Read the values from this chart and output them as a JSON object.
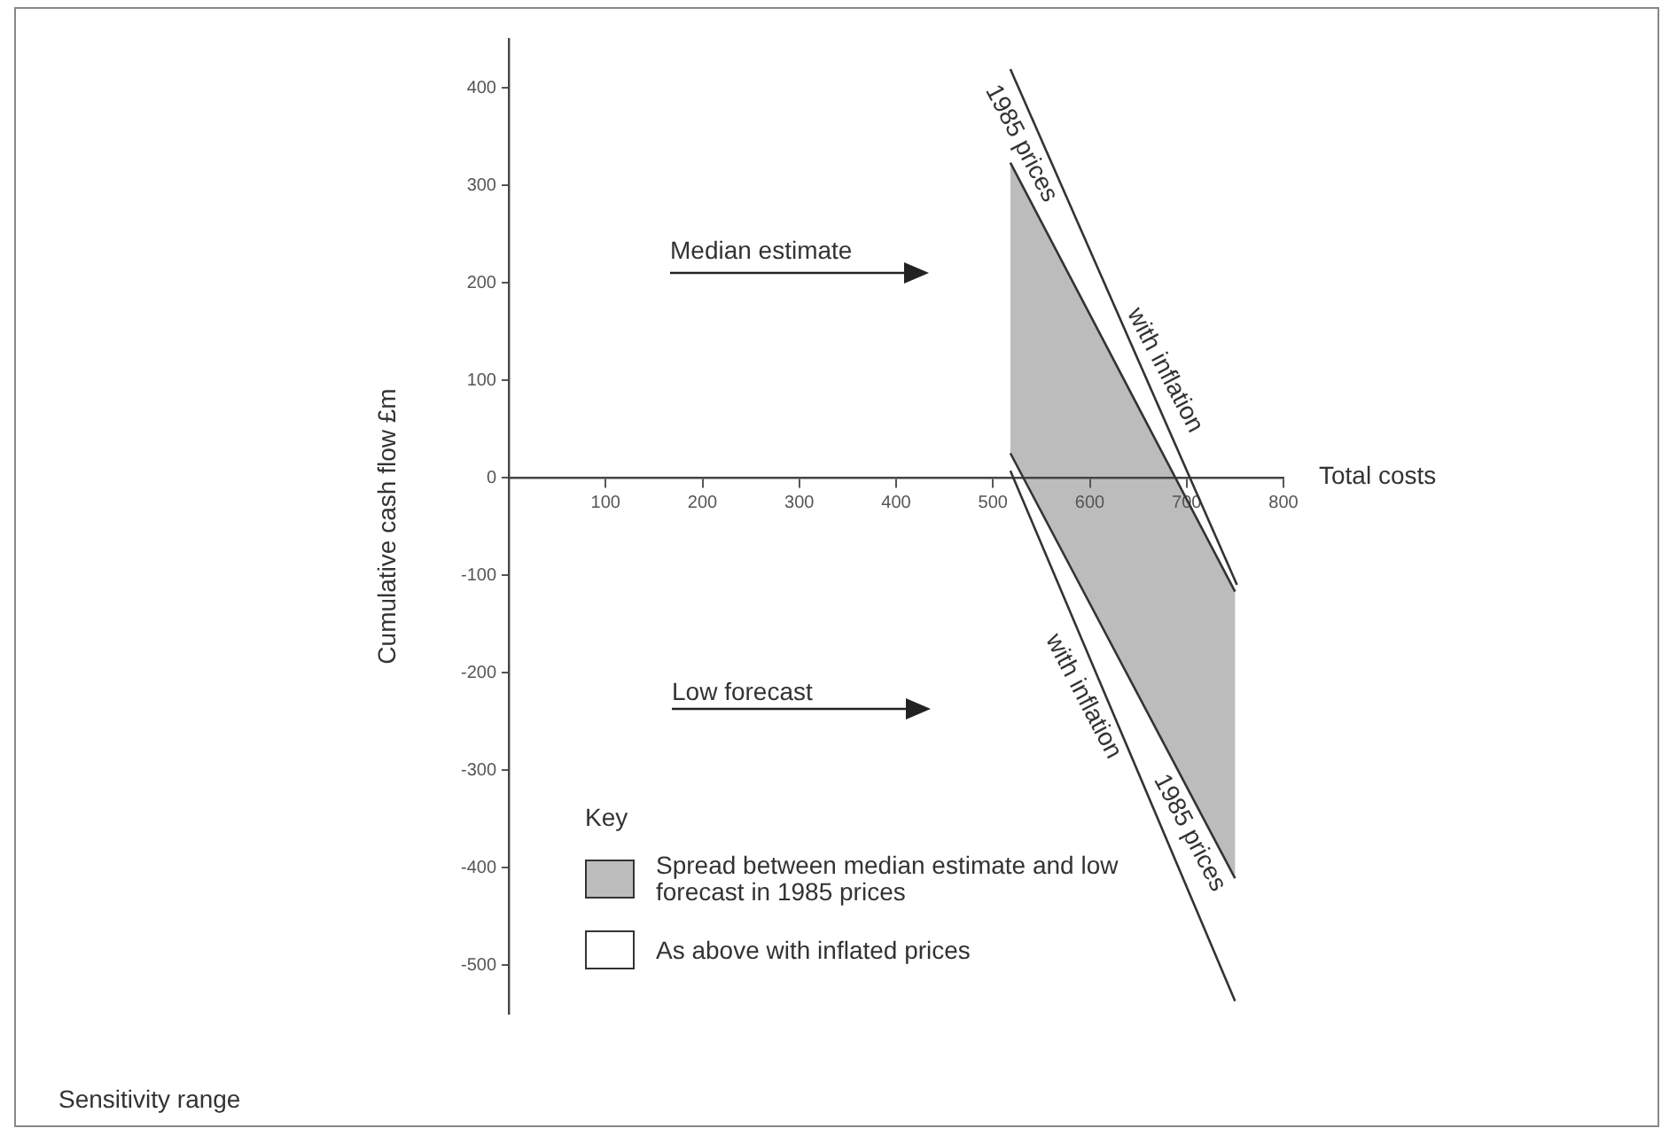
{
  "chart_data": {
    "type": "line",
    "title": "Sensitivity range",
    "xlabel": "Total costs",
    "ylabel": "Cumulative cash flow £m",
    "legend_title": "Key",
    "legend": "bottom left",
    "xlim": [
      0,
      800
    ],
    "xticks": [
      100,
      200,
      300,
      400,
      500,
      600,
      700,
      800
    ],
    "ylim": [
      -550,
      450
    ],
    "yticks": [
      -500,
      -400,
      -300,
      -200,
      -100,
      0,
      100,
      200,
      300,
      400
    ],
    "grid": false,
    "marker": "none",
    "line_style": "solid",
    "series": [
      {
        "name": "As above with inflated prices",
        "color": "#333333",
        "x": [
          518,
          752
        ],
        "values": [
          419,
          -110
        ]
      },
      {
        "name": "Spread between median estimate and low forecast in 1985 prices",
        "color": "#333333",
        "x": [
          518,
          750
        ],
        "values": [
          323,
          -117
        ],
        "lower": [
          25,
          -411
        ],
        "upper": [
          323,
          -117
        ]
      },
      {
        "color": "#333333",
        "x": [
          518,
          750
        ],
        "values": [
          25,
          -411
        ]
      },
      {
        "color": "#333333",
        "x": [
          518,
          750
        ],
        "values": [
          7,
          -537
        ]
      }
    ],
    "annotations": [
      "Median estimate",
      "Low forecast",
      "1985 prices",
      "with inflation",
      "with inflation",
      "1985 prices"
    ]
  }
}
